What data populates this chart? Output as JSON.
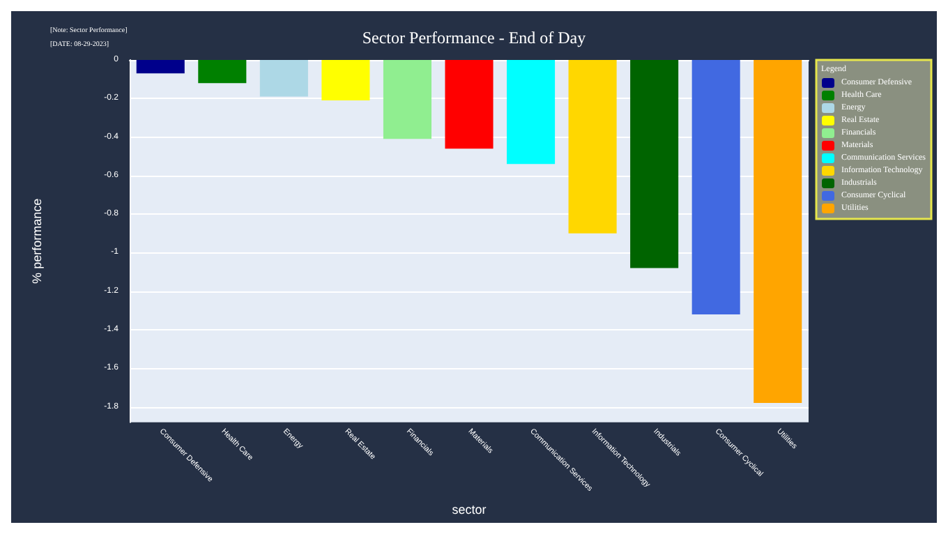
{
  "chart_data": {
    "type": "bar",
    "title": "Sector Performance - End of Day",
    "xlabel": "sector",
    "ylabel": "% performance",
    "legend_title": "Legend",
    "annotations": [
      "[Note: Sector Performance]",
      "[DATE: 08-29-2023]"
    ],
    "categories": [
      "Consumer Defensive",
      "Health Care",
      "Energy",
      "Real Estate",
      "Financials",
      "Materials",
      "Communication Services",
      "Information Technology",
      "Industrials",
      "Consumer Cyclical",
      "Utilities"
    ],
    "series": [
      {
        "name": "Consumer Defensive",
        "color": "#00008b",
        "values": [
          -0.07,
          null,
          null,
          null,
          null,
          null,
          null,
          null,
          null,
          null,
          null
        ]
      },
      {
        "name": "Health Care",
        "color": "#008000",
        "values": [
          null,
          -0.12,
          null,
          null,
          null,
          null,
          null,
          null,
          null,
          null,
          null
        ]
      },
      {
        "name": "Energy",
        "color": "#add8e6",
        "values": [
          null,
          null,
          -0.19,
          null,
          null,
          null,
          null,
          null,
          null,
          null,
          null
        ]
      },
      {
        "name": "Real Estate",
        "color": "#ffff00",
        "values": [
          null,
          null,
          null,
          -0.21,
          null,
          null,
          null,
          null,
          null,
          null,
          null
        ]
      },
      {
        "name": "Financials",
        "color": "#90ee90",
        "values": [
          null,
          null,
          null,
          null,
          -0.41,
          null,
          null,
          null,
          null,
          null,
          null
        ]
      },
      {
        "name": "Materials",
        "color": "#ff0000",
        "values": [
          null,
          null,
          null,
          null,
          null,
          -0.46,
          null,
          null,
          null,
          null,
          null
        ]
      },
      {
        "name": "Communication Services",
        "color": "#00ffff",
        "values": [
          null,
          null,
          null,
          null,
          null,
          null,
          -0.54,
          null,
          null,
          null,
          null
        ]
      },
      {
        "name": "Information Technology",
        "color": "#ffd700",
        "values": [
          null,
          null,
          null,
          null,
          null,
          null,
          null,
          -0.9,
          null,
          null,
          null
        ]
      },
      {
        "name": "Industrials",
        "color": "#006400",
        "values": [
          null,
          null,
          null,
          null,
          null,
          null,
          null,
          null,
          -1.08,
          null,
          null
        ]
      },
      {
        "name": "Consumer Cyclical",
        "color": "#4169e1",
        "values": [
          null,
          null,
          null,
          null,
          null,
          null,
          null,
          null,
          null,
          -1.32,
          null
        ]
      },
      {
        "name": "Utilities",
        "color": "#ffa500",
        "values": [
          null,
          null,
          null,
          null,
          null,
          null,
          null,
          null,
          null,
          null,
          -1.78
        ]
      }
    ],
    "ylim": [
      -1.88,
      0
    ],
    "yticks": [
      0,
      -0.2,
      -0.4,
      -0.6,
      -0.8,
      -1,
      -1.2,
      -1.4,
      -1.6,
      -1.8
    ],
    "grid": "y",
    "legend": "top right"
  }
}
